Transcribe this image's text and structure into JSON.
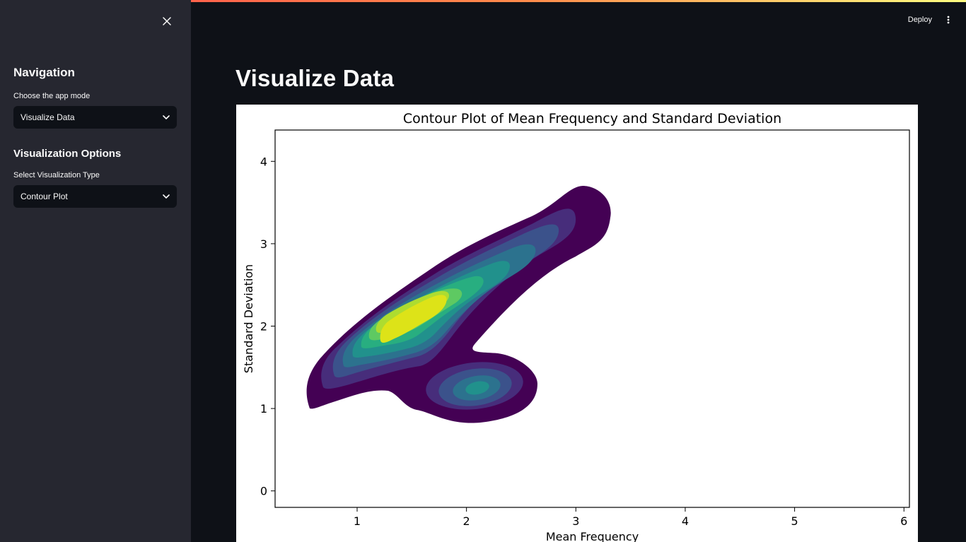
{
  "sidebar": {
    "nav_heading": "Navigation",
    "mode_label": "Choose the app mode",
    "mode_value": "Visualize Data",
    "viz_heading": "Visualization Options",
    "viz_label": "Select Visualization Type",
    "viz_value": "Contour Plot"
  },
  "header": {
    "deploy_label": "Deploy"
  },
  "main": {
    "title": "Visualize Data"
  },
  "colors": {
    "accent_start": "#ff4b4b",
    "accent_end": "#fffd80",
    "sidebar_bg": "#262730",
    "app_bg": "#0e1117"
  },
  "chart_data": {
    "type": "contour",
    "title": "Contour Plot of Mean Frequency and Standard Deviation",
    "xlabel": "Mean Frequency",
    "ylabel": "Standard Deviation",
    "xlim": [
      0.25,
      6.05
    ],
    "ylim": [
      -0.2,
      4.38
    ],
    "xticks": [
      1,
      2,
      3,
      4,
      5,
      6
    ],
    "yticks": [
      0,
      1,
      2,
      3,
      4
    ],
    "colormap": "viridis",
    "levels": [
      "#440154",
      "#472d7b",
      "#3b528b",
      "#2c728e",
      "#21918c",
      "#28ae80",
      "#5ec962",
      "#addc30",
      "#dde318"
    ],
    "peaks": [
      {
        "name": "main",
        "x": 1.55,
        "y": 2.05,
        "level": "highest"
      },
      {
        "name": "secondary",
        "x": 2.15,
        "y": 1.22,
        "level": "mid"
      }
    ]
  }
}
